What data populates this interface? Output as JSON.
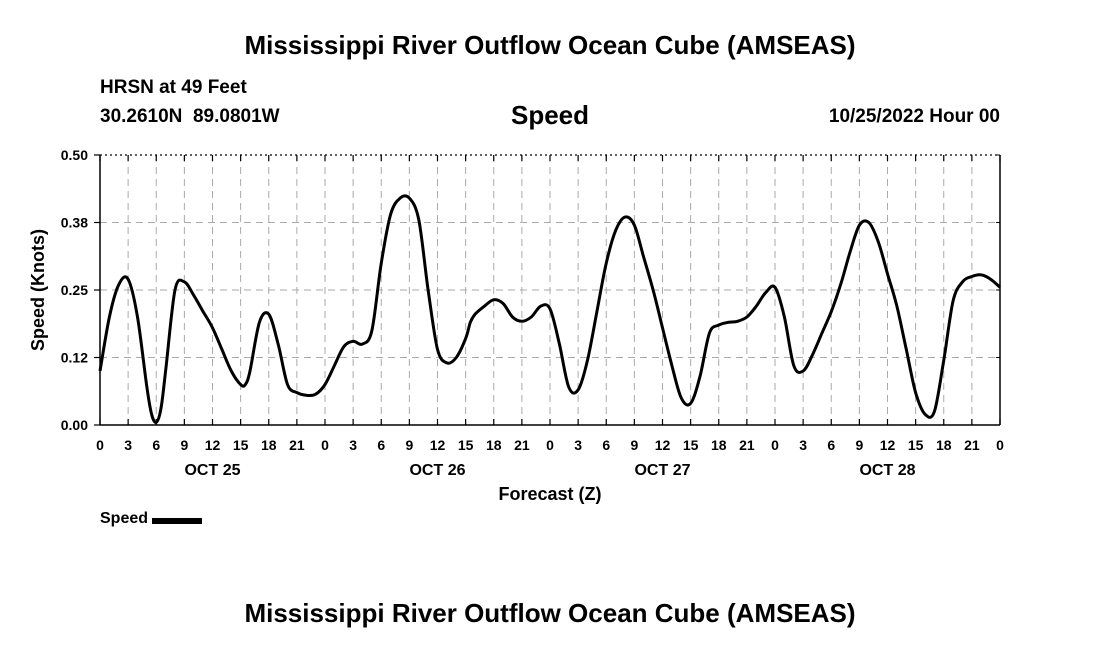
{
  "main_title": "Mississippi River Outflow Ocean Cube (AMSEAS)",
  "second_title": "Mississippi River Outflow Ocean Cube (AMSEAS)",
  "header": {
    "station": "HRSN at 49 Feet",
    "coordinates": "30.2610N  89.0801W",
    "series_title": "Speed",
    "date": "10/25/2022 Hour 00"
  },
  "legend": {
    "label": "Speed"
  },
  "chart_data": {
    "type": "line",
    "title": "Speed",
    "xlabel": "Forecast (Z)",
    "ylabel": "Speed (Knots)",
    "xlim": [
      0,
      96
    ],
    "ylim": [
      0,
      0.5
    ],
    "y_ticks": [
      0.0,
      0.125,
      0.25,
      0.375,
      0.5
    ],
    "y_tick_labels": [
      "0.00",
      "0.12",
      "0.25",
      "0.38",
      "0.50"
    ],
    "x_ticks": [
      0,
      3,
      6,
      9,
      12,
      15,
      18,
      21,
      24,
      27,
      30,
      33,
      36,
      39,
      42,
      45,
      48,
      51,
      54,
      57,
      60,
      63,
      66,
      69,
      72,
      75,
      78,
      81,
      84,
      87,
      90,
      93,
      96
    ],
    "x_tick_labels": [
      "0",
      "3",
      "6",
      "9",
      "12",
      "15",
      "18",
      "21",
      "0",
      "3",
      "6",
      "9",
      "12",
      "15",
      "18",
      "21",
      "0",
      "3",
      "6",
      "9",
      "12",
      "15",
      "18",
      "21",
      "0",
      "3",
      "6",
      "9",
      "12",
      "15",
      "18",
      "21",
      "0"
    ],
    "day_labels": [
      {
        "hour": 12,
        "label": "OCT 25"
      },
      {
        "hour": 36,
        "label": "OCT 26"
      },
      {
        "hour": 60,
        "label": "OCT 27"
      },
      {
        "hour": 84,
        "label": "OCT 28"
      }
    ],
    "grid": true,
    "series": [
      {
        "name": "Speed",
        "color": "#000000",
        "x": [
          0,
          1,
          2,
          3,
          4,
          5,
          5.5,
          6,
          6.5,
          7,
          8,
          9,
          10,
          11,
          12,
          13,
          14,
          15,
          15.5,
          16,
          17,
          18,
          19,
          20,
          21,
          22,
          23,
          24,
          25,
          26,
          27,
          28,
          29,
          30,
          31,
          32,
          33,
          34,
          35,
          36,
          37,
          38,
          39,
          39.5,
          40,
          41,
          42,
          43,
          44,
          45,
          46,
          47,
          48,
          49,
          50,
          51,
          52,
          53,
          54,
          55,
          56,
          57,
          58,
          59,
          60,
          61,
          62,
          63,
          64,
          65,
          66,
          67,
          68,
          69,
          70,
          71,
          72,
          73,
          74,
          75,
          76,
          77,
          78,
          79,
          80,
          81,
          82,
          83,
          84,
          85,
          86,
          87,
          88,
          89,
          90,
          91,
          92,
          93,
          94,
          95,
          96
        ],
        "y": [
          0.1,
          0.2,
          0.26,
          0.27,
          0.2,
          0.07,
          0.02,
          0.005,
          0.03,
          0.1,
          0.25,
          0.265,
          0.24,
          0.21,
          0.18,
          0.14,
          0.1,
          0.075,
          0.075,
          0.1,
          0.19,
          0.205,
          0.15,
          0.075,
          0.06,
          0.055,
          0.057,
          0.075,
          0.11,
          0.145,
          0.155,
          0.15,
          0.175,
          0.3,
          0.39,
          0.42,
          0.42,
          0.38,
          0.25,
          0.14,
          0.115,
          0.125,
          0.16,
          0.19,
          0.205,
          0.22,
          0.232,
          0.225,
          0.2,
          0.192,
          0.2,
          0.22,
          0.215,
          0.15,
          0.07,
          0.065,
          0.12,
          0.21,
          0.3,
          0.36,
          0.385,
          0.37,
          0.31,
          0.25,
          0.18,
          0.11,
          0.05,
          0.04,
          0.09,
          0.17,
          0.185,
          0.19,
          0.192,
          0.2,
          0.22,
          0.245,
          0.255,
          0.2,
          0.11,
          0.1,
          0.13,
          0.17,
          0.21,
          0.26,
          0.32,
          0.37,
          0.375,
          0.34,
          0.28,
          0.22,
          0.14,
          0.06,
          0.02,
          0.025,
          0.12,
          0.23,
          0.265,
          0.275,
          0.278,
          0.27,
          0.255
        ]
      }
    ]
  }
}
